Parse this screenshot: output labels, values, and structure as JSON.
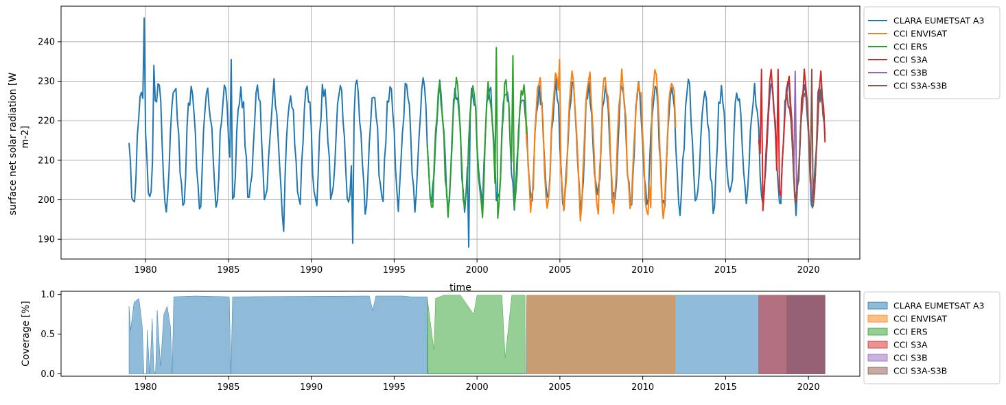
{
  "chart_data": [
    {
      "type": "line",
      "panel": "top",
      "title": "",
      "xlabel": "time",
      "ylabel_lines": [
        "surface net solar radiation [W",
        "m-2]"
      ],
      "xlim": [
        1974.9,
        2023.1
      ],
      "ylim": [
        185,
        249
      ],
      "xticks": [
        1980,
        1985,
        1990,
        1995,
        2000,
        2005,
        2010,
        2015,
        2020
      ],
      "yticks": [
        190,
        200,
        210,
        220,
        230,
        240
      ],
      "grid": true,
      "legend_position": "outside-right-top",
      "series": [
        {
          "name": "CLARA EUMETSAT A3",
          "color": "#1f77b4",
          "start": 1979.0,
          "end": 2021.0,
          "mean": 214.5,
          "amplitude": 14.5,
          "phase": 0.5,
          "spikes": [
            [
              1979.9,
              246.0
            ],
            [
              1980.5,
              234.0
            ],
            [
              1985.2,
              235.5
            ],
            [
              1988.3,
              192.0
            ],
            [
              1992.5,
              189.0
            ],
            [
              1999.5,
              188.0
            ]
          ]
        },
        {
          "name": "CCI ENVISAT",
          "color": "#ff7f0e",
          "start": 2002.9,
          "end": 2012.0,
          "mean": 215.5,
          "amplitude": 17.0,
          "phase": 0.5,
          "spikes": [
            [
              2005.0,
              235.5
            ],
            [
              2010.5,
              198.0
            ]
          ]
        },
        {
          "name": "CCI ERS",
          "color": "#2ca02c",
          "start": 1997.0,
          "end": 2003.0,
          "mean": 214.0,
          "amplitude": 15.5,
          "phase": 0.5,
          "spikes": [
            [
              2001.2,
              238.5
            ],
            [
              2002.2,
              236.5
            ],
            [
              2000.3,
              195.5
            ]
          ]
        },
        {
          "name": "CCI S3A",
          "color": "#d62728",
          "start": 2017.0,
          "end": 2021.0,
          "mean": 216.0,
          "amplitude": 15.5,
          "phase": 0.5,
          "spikes": [
            [
              2017.2,
              233.0
            ],
            [
              2018.2,
              233.0
            ]
          ]
        },
        {
          "name": "CCI S3B",
          "color": "#9467bd",
          "start": 2018.7,
          "end": 2021.0,
          "mean": 214.5,
          "amplitude": 13.0,
          "phase": 0.5,
          "spikes": [
            [
              2019.2,
              232.5
            ]
          ]
        },
        {
          "name": "CCI S3A-S3B",
          "color": "#8c564b",
          "start": 2018.7,
          "end": 2021.0,
          "mean": 214.5,
          "amplitude": 13.5,
          "phase": 0.5,
          "spikes": [
            [
              2020.2,
              233.0
            ]
          ]
        }
      ]
    },
    {
      "type": "area",
      "panel": "bottom",
      "title": "",
      "xlabel": "",
      "ylabel": "Coverage [%]",
      "xlim": [
        1974.9,
        2023.1
      ],
      "ylim": [
        -0.03,
        1.04
      ],
      "xticks": [
        1980,
        1985,
        1990,
        1995,
        2000,
        2005,
        2010,
        2015,
        2020
      ],
      "yticks": [
        0.0,
        0.5,
        1.0
      ],
      "ytick_labels": [
        "0.0",
        "0.5",
        "1.0"
      ],
      "grid": false,
      "legend_position": "outside-right-top",
      "series": [
        {
          "name": "CLARA EUMETSAT A3",
          "color": "#1f77b4",
          "opacity": 0.5,
          "points": [
            [
              1979.0,
              0.85
            ],
            [
              1979.1,
              0.55
            ],
            [
              1979.3,
              0.9
            ],
            [
              1979.6,
              0.95
            ],
            [
              1979.8,
              0.6
            ],
            [
              1979.9,
              0.0
            ],
            [
              1980.05,
              0.0
            ],
            [
              1980.1,
              0.55
            ],
            [
              1980.25,
              0.0
            ],
            [
              1980.4,
              0.7
            ],
            [
              1980.5,
              0.05
            ],
            [
              1980.6,
              0.0
            ],
            [
              1980.7,
              0.8
            ],
            [
              1980.9,
              0.1
            ],
            [
              1981.1,
              0.75
            ],
            [
              1981.3,
              0.85
            ],
            [
              1981.5,
              0.6
            ],
            [
              1981.6,
              0.0
            ],
            [
              1981.7,
              0.97
            ],
            [
              1983.0,
              0.98
            ],
            [
              1985.05,
              0.97
            ],
            [
              1985.15,
              0.0
            ],
            [
              1985.25,
              0.97
            ],
            [
              1993.5,
              0.98
            ],
            [
              1993.7,
              0.8
            ],
            [
              1993.9,
              0.98
            ],
            [
              1995.5,
              0.98
            ],
            [
              1996.0,
              0.97
            ],
            [
              1997.0,
              0.97
            ],
            [
              1997.05,
              0.0
            ],
            [
              2002.95,
              0.0
            ],
            [
              2003.0,
              0.99
            ],
            [
              2016.9,
              0.99
            ],
            [
              2017.0,
              0.99
            ],
            [
              2021.0,
              0.99
            ]
          ]
        },
        {
          "name": "CCI ENVISAT",
          "color": "#ff7f0e",
          "opacity": 0.5,
          "points": [
            [
              2003.0,
              0.99
            ],
            [
              2011.95,
              0.99
            ]
          ]
        },
        {
          "name": "CCI ERS",
          "color": "#2ca02c",
          "opacity": 0.5,
          "points": [
            [
              1997.0,
              0.95
            ],
            [
              1997.4,
              0.3
            ],
            [
              1997.5,
              0.95
            ],
            [
              1998.0,
              0.99
            ],
            [
              1999.0,
              0.99
            ],
            [
              1999.8,
              0.75
            ],
            [
              2000.0,
              0.99
            ],
            [
              2001.5,
              0.99
            ],
            [
              2001.7,
              0.2
            ],
            [
              2001.9,
              0.6
            ],
            [
              2002.1,
              0.99
            ],
            [
              2002.9,
              0.99
            ]
          ]
        },
        {
          "name": "CCI S3A",
          "color": "#d62728",
          "opacity": 0.5,
          "points": [
            [
              2017.0,
              0.99
            ],
            [
              2021.0,
              0.99
            ]
          ]
        },
        {
          "name": "CCI S3B",
          "color": "#9467bd",
          "opacity": 0.5,
          "points": [
            [
              2018.7,
              0.99
            ],
            [
              2021.0,
              0.99
            ]
          ]
        },
        {
          "name": "CCI S3A-S3B",
          "color": "#8c564b",
          "opacity": 0.5,
          "points": [
            [
              2018.7,
              0.99
            ],
            [
              2021.0,
              0.99
            ]
          ]
        }
      ]
    }
  ]
}
